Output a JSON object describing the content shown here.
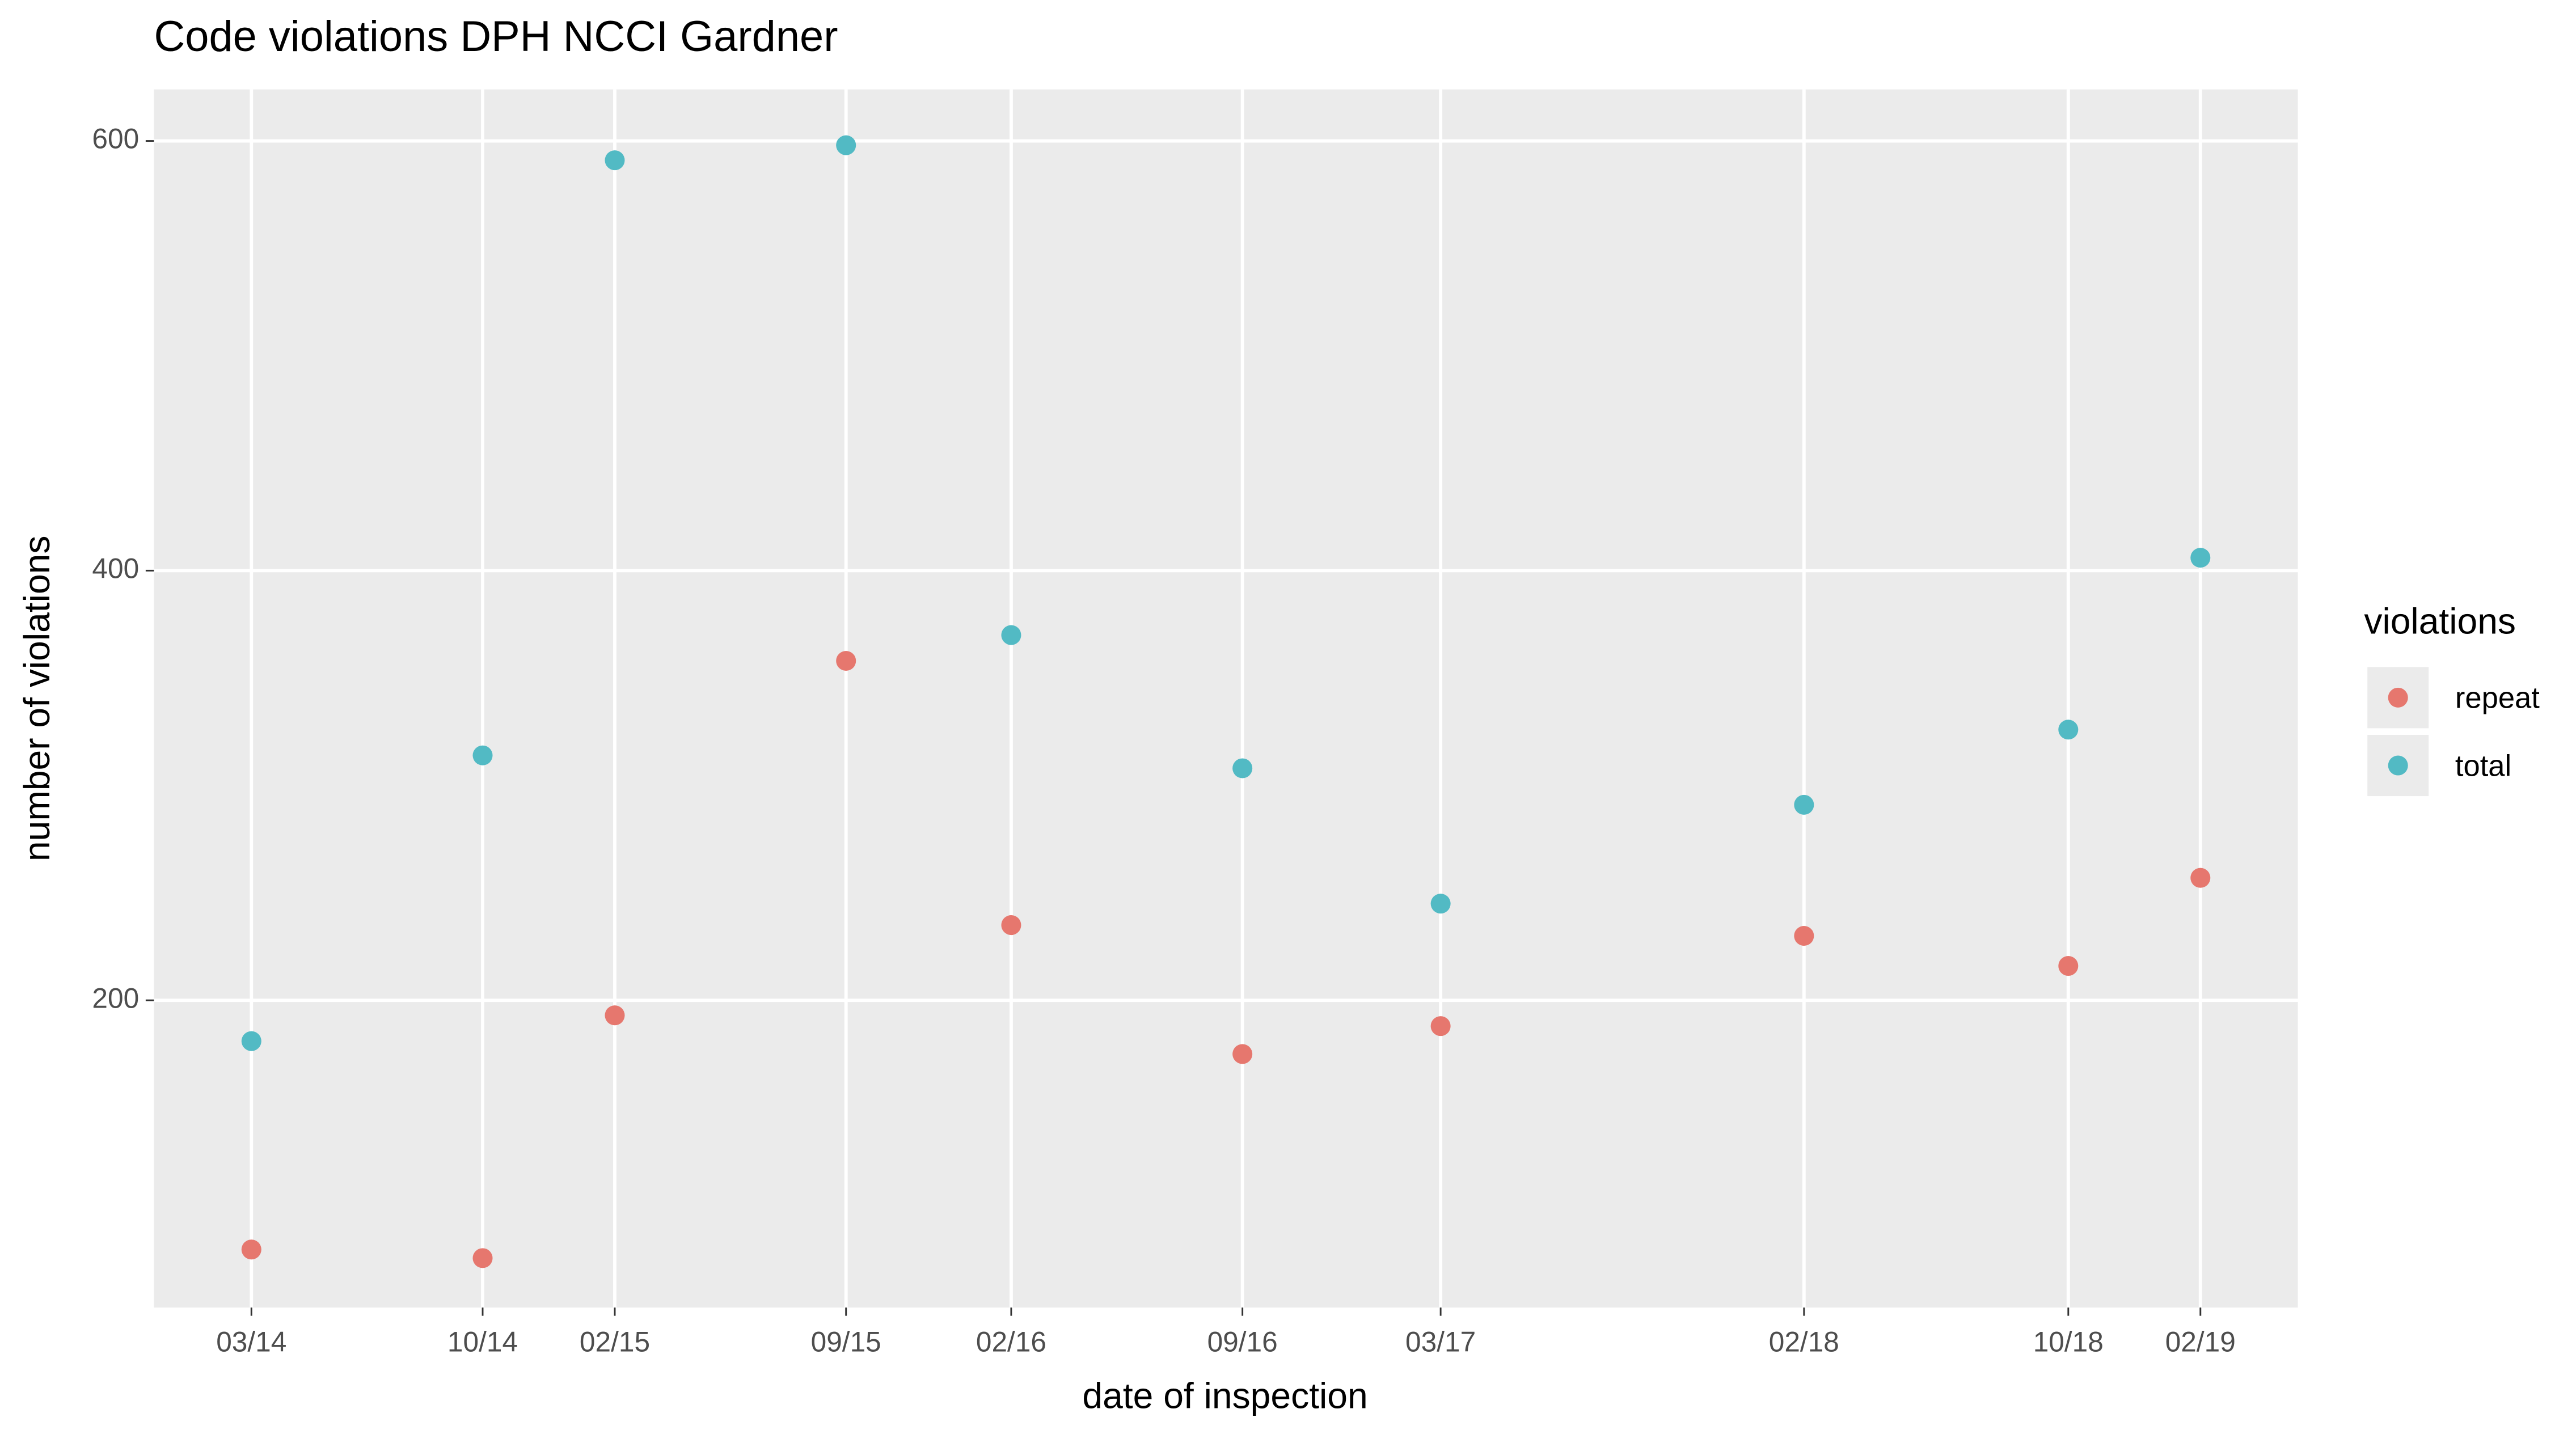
{
  "chart_data": {
    "type": "scatter",
    "title": "Code violations DPH NCCI Gardner",
    "x_label": "date of inspection",
    "y_label": "number of violations",
    "x": [
      "03/14",
      "10/14",
      "02/15",
      "09/15",
      "02/16",
      "09/16",
      "03/17",
      "02/18",
      "10/18",
      "02/19"
    ],
    "series": [
      {
        "name": "repeat",
        "color": "#e6776e",
        "values": [
          84,
          80,
          193,
          358,
          235,
          175,
          188,
          230,
          216,
          257
        ]
      },
      {
        "name": "total",
        "color": "#52bac4",
        "values": [
          181,
          314,
          591,
          598,
          370,
          308,
          245,
          291,
          326,
          406
        ]
      }
    ],
    "ylim": [
      57,
      624
    ],
    "yticks": [
      200,
      400,
      600
    ],
    "grid": true,
    "legend_title": "violations",
    "legend_position": "right"
  }
}
